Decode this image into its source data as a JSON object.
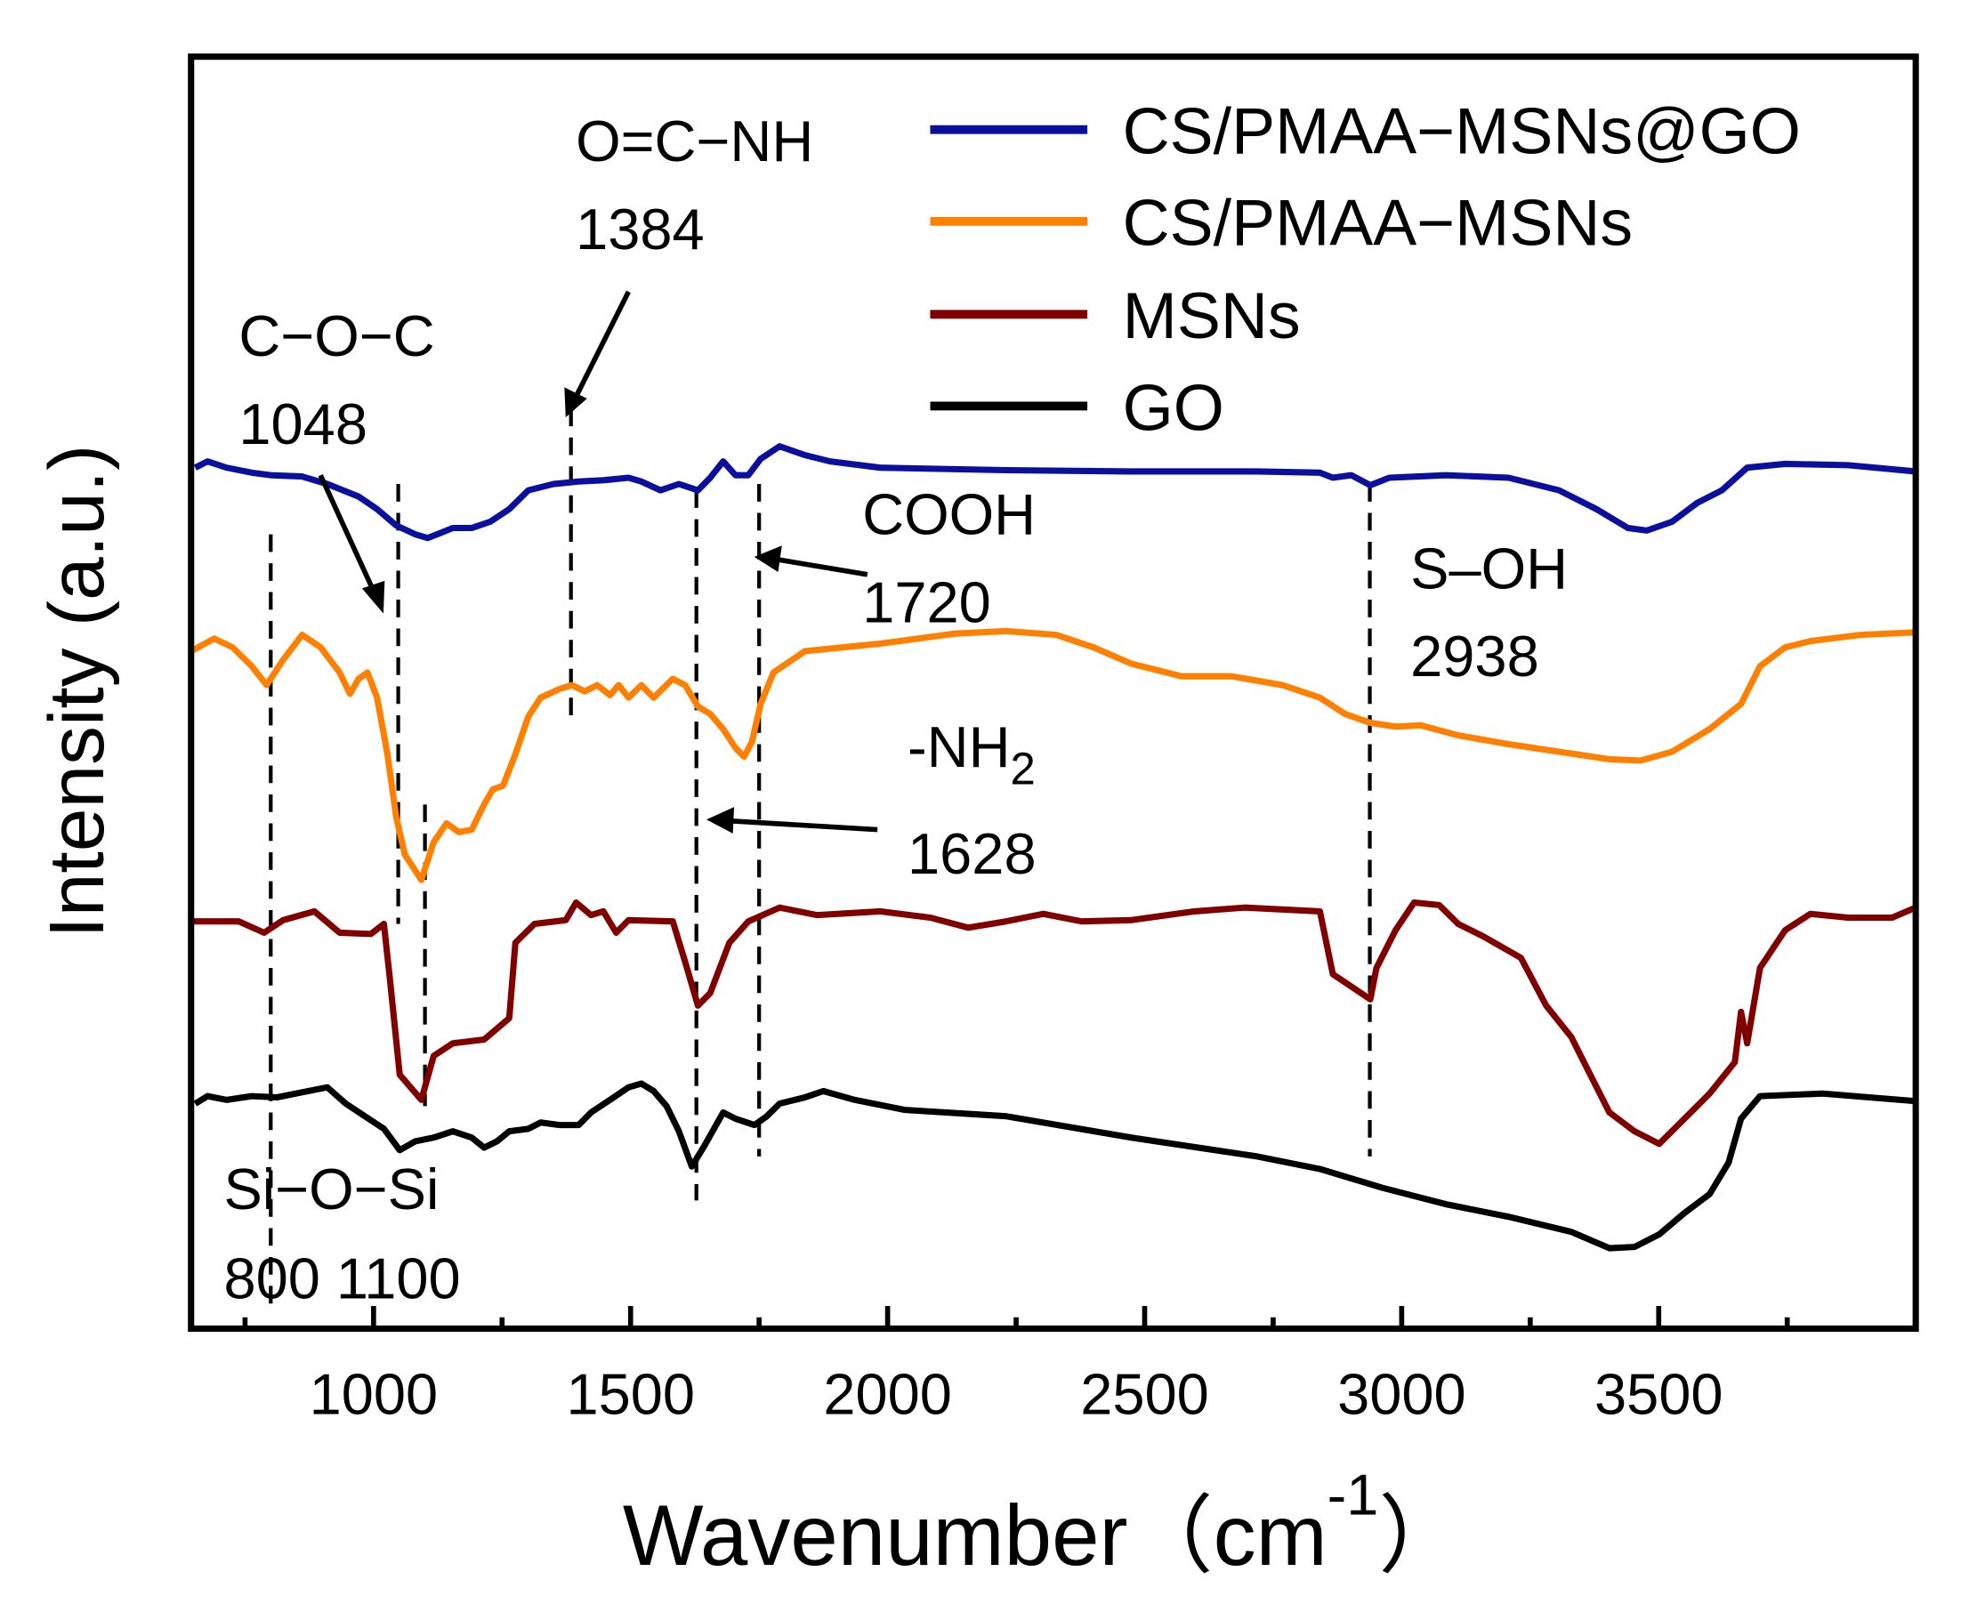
{
  "chart_data": {
    "type": "line",
    "title": "",
    "xlabel": {
      "main": "Wavenumber（cm",
      "sup": "-1",
      "close": "）"
    },
    "ylabel": "Intensity (a.u.)",
    "xlim": [
      645,
      4000
    ],
    "ylim": [
      0,
      101.2
    ],
    "xticks": [
      1000,
      1500,
      2000,
      2500,
      3000,
      3500
    ],
    "xtick_labels": [
      "1000",
      "1500",
      "2000",
      "2500",
      "3000",
      "3500"
    ],
    "minor_xticks": [
      750,
      1250,
      1750,
      2250,
      2750,
      3250,
      3750
    ],
    "yticks": [],
    "grid": false,
    "legend_position": "top-right",
    "series": [
      {
        "name": "CS/PMAA−MSNs@GO",
        "color": "#0a0f9e",
        "points": [
          [
            653,
            68.5
          ],
          [
            677,
            69.0
          ],
          [
            714,
            68.5
          ],
          [
            763,
            68.1
          ],
          [
            800,
            67.9
          ],
          [
            861,
            67.8
          ],
          [
            910,
            67.2
          ],
          [
            971,
            66.2
          ],
          [
            1007,
            65.2
          ],
          [
            1044,
            63.9
          ],
          [
            1081,
            63.2
          ],
          [
            1105,
            62.9
          ],
          [
            1130,
            63.3
          ],
          [
            1154,
            63.7
          ],
          [
            1191,
            63.7
          ],
          [
            1227,
            64.2
          ],
          [
            1264,
            65.2
          ],
          [
            1301,
            66.7
          ],
          [
            1350,
            67.2
          ],
          [
            1399,
            67.4
          ],
          [
            1447,
            67.5
          ],
          [
            1496,
            67.7
          ],
          [
            1521,
            67.4
          ],
          [
            1558,
            66.7
          ],
          [
            1594,
            67.2
          ],
          [
            1631,
            66.7
          ],
          [
            1655,
            67.7
          ],
          [
            1680,
            69.0
          ],
          [
            1704,
            67.9
          ],
          [
            1729,
            67.9
          ],
          [
            1753,
            69.2
          ],
          [
            1790,
            70.2
          ],
          [
            1839,
            69.5
          ],
          [
            1888,
            69.0
          ],
          [
            1985,
            68.5
          ],
          [
            2230,
            68.3
          ],
          [
            2474,
            68.2
          ],
          [
            2719,
            68.2
          ],
          [
            2841,
            68.1
          ],
          [
            2866,
            67.7
          ],
          [
            2902,
            67.9
          ],
          [
            2939,
            67.1
          ],
          [
            2976,
            67.7
          ],
          [
            3086,
            67.9
          ],
          [
            3208,
            67.7
          ],
          [
            3306,
            66.7
          ],
          [
            3379,
            65.2
          ],
          [
            3440,
            63.7
          ],
          [
            3477,
            63.5
          ],
          [
            3526,
            64.2
          ],
          [
            3575,
            65.7
          ],
          [
            3623,
            66.7
          ],
          [
            3672,
            68.5
          ],
          [
            3746,
            68.8
          ],
          [
            3868,
            68.7
          ],
          [
            4000,
            68.2
          ]
        ]
      },
      {
        "name": "CS/PMAA−MSNs",
        "color": "#ff8000",
        "points": [
          [
            645,
            53.9
          ],
          [
            690,
            54.9
          ],
          [
            726,
            54.2
          ],
          [
            763,
            52.7
          ],
          [
            792,
            51.2
          ],
          [
            824,
            53.2
          ],
          [
            861,
            55.2
          ],
          [
            897,
            54.2
          ],
          [
            934,
            52.2
          ],
          [
            954,
            50.5
          ],
          [
            971,
            51.7
          ],
          [
            988,
            52.2
          ],
          [
            1007,
            50.2
          ],
          [
            1027,
            45.7
          ],
          [
            1044,
            40.7
          ],
          [
            1061,
            37.7
          ],
          [
            1093,
            35.7
          ],
          [
            1117,
            38.7
          ],
          [
            1142,
            40.2
          ],
          [
            1166,
            39.5
          ],
          [
            1191,
            39.7
          ],
          [
            1215,
            41.7
          ],
          [
            1232,
            42.9
          ],
          [
            1252,
            43.2
          ],
          [
            1276,
            45.7
          ],
          [
            1301,
            48.7
          ],
          [
            1325,
            50.2
          ],
          [
            1362,
            50.9
          ],
          [
            1386,
            51.2
          ],
          [
            1411,
            50.7
          ],
          [
            1435,
            51.2
          ],
          [
            1460,
            50.4
          ],
          [
            1477,
            51.2
          ],
          [
            1496,
            50.2
          ],
          [
            1521,
            51.2
          ],
          [
            1545,
            50.2
          ],
          [
            1582,
            51.7
          ],
          [
            1606,
            51.2
          ],
          [
            1631,
            49.5
          ],
          [
            1655,
            48.9
          ],
          [
            1680,
            47.7
          ],
          [
            1704,
            46.2
          ],
          [
            1721,
            45.5
          ],
          [
            1736,
            46.7
          ],
          [
            1753,
            49.7
          ],
          [
            1778,
            52.2
          ],
          [
            1839,
            53.9
          ],
          [
            1936,
            54.3
          ],
          [
            1985,
            54.5
          ],
          [
            2132,
            55.3
          ],
          [
            2230,
            55.5
          ],
          [
            2328,
            55.2
          ],
          [
            2401,
            54.2
          ],
          [
            2474,
            52.9
          ],
          [
            2572,
            51.9
          ],
          [
            2670,
            51.9
          ],
          [
            2768,
            51.2
          ],
          [
            2841,
            50.2
          ],
          [
            2890,
            48.9
          ],
          [
            2939,
            48.2
          ],
          [
            2988,
            47.9
          ],
          [
            3037,
            48.0
          ],
          [
            3110,
            47.2
          ],
          [
            3208,
            46.5
          ],
          [
            3306,
            45.9
          ],
          [
            3404,
            45.3
          ],
          [
            3465,
            45.2
          ],
          [
            3526,
            45.9
          ],
          [
            3599,
            47.7
          ],
          [
            3660,
            49.7
          ],
          [
            3697,
            52.7
          ],
          [
            3746,
            54.2
          ],
          [
            3795,
            54.7
          ],
          [
            3893,
            55.2
          ],
          [
            4000,
            55.4
          ]
        ]
      },
      {
        "name": "MSNs",
        "color": "#800000",
        "points": [
          [
            645,
            32.4
          ],
          [
            738,
            32.4
          ],
          [
            787,
            31.5
          ],
          [
            824,
            32.5
          ],
          [
            885,
            33.2
          ],
          [
            934,
            31.5
          ],
          [
            995,
            31.4
          ],
          [
            1020,
            32.2
          ],
          [
            1032,
            27.7
          ],
          [
            1051,
            20.2
          ],
          [
            1093,
            18.2
          ],
          [
            1117,
            21.7
          ],
          [
            1154,
            22.7
          ],
          [
            1215,
            23.0
          ],
          [
            1264,
            24.7
          ],
          [
            1276,
            30.7
          ],
          [
            1313,
            32.2
          ],
          [
            1374,
            32.5
          ],
          [
            1394,
            33.9
          ],
          [
            1423,
            32.9
          ],
          [
            1447,
            33.2
          ],
          [
            1472,
            31.5
          ],
          [
            1496,
            32.5
          ],
          [
            1582,
            32.4
          ],
          [
            1606,
            29.2
          ],
          [
            1631,
            25.7
          ],
          [
            1655,
            26.7
          ],
          [
            1692,
            30.7
          ],
          [
            1729,
            32.4
          ],
          [
            1790,
            33.5
          ],
          [
            1863,
            32.9
          ],
          [
            1985,
            33.2
          ],
          [
            2083,
            32.7
          ],
          [
            2157,
            31.9
          ],
          [
            2230,
            32.4
          ],
          [
            2303,
            33.0
          ],
          [
            2377,
            32.4
          ],
          [
            2474,
            32.5
          ],
          [
            2597,
            33.2
          ],
          [
            2695,
            33.5
          ],
          [
            2841,
            33.2
          ],
          [
            2866,
            28.2
          ],
          [
            2939,
            26.2
          ],
          [
            2951,
            28.7
          ],
          [
            2988,
            31.7
          ],
          [
            3024,
            33.9
          ],
          [
            3073,
            33.7
          ],
          [
            3110,
            32.2
          ],
          [
            3159,
            31.2
          ],
          [
            3232,
            29.5
          ],
          [
            3281,
            25.7
          ],
          [
            3330,
            23.2
          ],
          [
            3367,
            20.2
          ],
          [
            3404,
            17.2
          ],
          [
            3453,
            15.7
          ],
          [
            3501,
            14.7
          ],
          [
            3550,
            16.7
          ],
          [
            3599,
            18.7
          ],
          [
            3648,
            21.2
          ],
          [
            3660,
            25.2
          ],
          [
            3672,
            22.7
          ],
          [
            3697,
            28.7
          ],
          [
            3746,
            31.7
          ],
          [
            3795,
            33.0
          ],
          [
            3868,
            32.7
          ],
          [
            3954,
            32.7
          ],
          [
            4000,
            33.5
          ]
        ]
      },
      {
        "name": "GO",
        "color": "#000000",
        "points": [
          [
            653,
            17.9
          ],
          [
            677,
            18.5
          ],
          [
            714,
            18.2
          ],
          [
            763,
            18.5
          ],
          [
            812,
            18.4
          ],
          [
            873,
            18.9
          ],
          [
            910,
            19.2
          ],
          [
            946,
            17.9
          ],
          [
            983,
            16.9
          ],
          [
            1020,
            15.9
          ],
          [
            1051,
            14.2
          ],
          [
            1081,
            14.9
          ],
          [
            1117,
            15.2
          ],
          [
            1154,
            15.7
          ],
          [
            1191,
            15.2
          ],
          [
            1215,
            14.4
          ],
          [
            1240,
            14.9
          ],
          [
            1264,
            15.7
          ],
          [
            1301,
            15.9
          ],
          [
            1325,
            16.4
          ],
          [
            1362,
            16.2
          ],
          [
            1399,
            16.2
          ],
          [
            1423,
            17.2
          ],
          [
            1460,
            18.2
          ],
          [
            1496,
            19.2
          ],
          [
            1521,
            19.5
          ],
          [
            1545,
            18.9
          ],
          [
            1570,
            17.7
          ],
          [
            1594,
            15.7
          ],
          [
            1619,
            12.9
          ],
          [
            1643,
            14.5
          ],
          [
            1680,
            17.2
          ],
          [
            1704,
            16.7
          ],
          [
            1741,
            16.2
          ],
          [
            1765,
            16.9
          ],
          [
            1790,
            17.9
          ],
          [
            1839,
            18.4
          ],
          [
            1875,
            18.9
          ],
          [
            1936,
            18.2
          ],
          [
            2034,
            17.4
          ],
          [
            2230,
            16.9
          ],
          [
            2474,
            15.2
          ],
          [
            2719,
            13.7
          ],
          [
            2841,
            12.7
          ],
          [
            2963,
            11.2
          ],
          [
            3086,
            9.9
          ],
          [
            3208,
            8.9
          ],
          [
            3330,
            7.7
          ],
          [
            3404,
            6.4
          ],
          [
            3453,
            6.5
          ],
          [
            3501,
            7.5
          ],
          [
            3550,
            9.2
          ],
          [
            3599,
            10.7
          ],
          [
            3636,
            13.2
          ],
          [
            3660,
            16.7
          ],
          [
            3697,
            18.5
          ],
          [
            3819,
            18.7
          ],
          [
            4000,
            18.1
          ]
        ]
      }
    ],
    "reference_lines": [
      {
        "x": 800,
        "y_range": [
          1.7,
          63.2
        ]
      },
      {
        "x": 1048,
        "y_range": [
          32.2,
          67.2
        ]
      },
      {
        "x": 1100,
        "y_range": [
          17.7,
          41.7
        ]
      },
      {
        "x": 1384,
        "y_range": [
          48.2,
          73.2
        ]
      },
      {
        "x": 1628,
        "y_range": [
          10.2,
          66.7
        ]
      },
      {
        "x": 1750,
        "y_range": [
          13.7,
          67.2
        ]
      },
      {
        "x": 2938,
        "y_range": [
          13.7,
          67.2
        ]
      }
    ],
    "annotations": {
      "amide_name": "O=C−NH",
      "amide_value": "1384",
      "coc_name": "C−O−C",
      "coc_value": "1048",
      "cooh_name": "COOH",
      "cooh_value": "1720",
      "soh_name": "S–OH",
      "soh_value": "2938",
      "nh2_name": "-NH",
      "nh2_sub": "2",
      "nh2_value": "1628",
      "siosi_name": "Si−O−Si",
      "siosi_values": "800 1100"
    }
  }
}
